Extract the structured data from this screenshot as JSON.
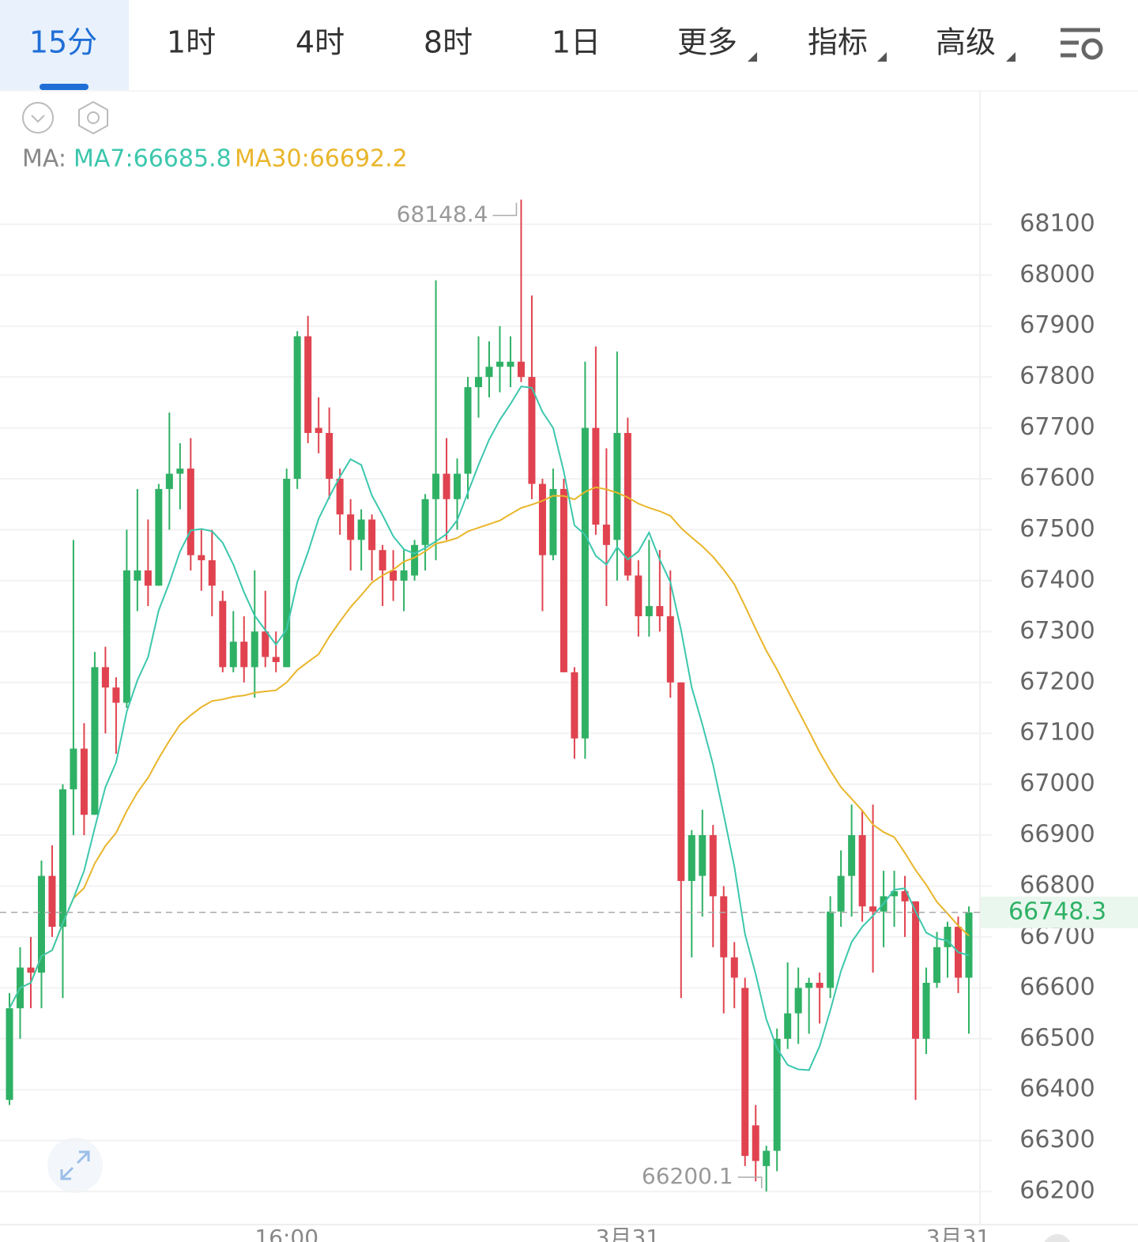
{
  "tabs": [
    "15分",
    "1时",
    "4时",
    "8时",
    "1日",
    "更多",
    "指标",
    "高级"
  ],
  "indicator": {
    "prefix": "MA:",
    "ma7": "MA7:66685.8",
    "ma30": "MA30:66692.2"
  },
  "chart_data": {
    "type": "candlestick",
    "categories": [
      null,
      null,
      null,
      null,
      null,
      null,
      null,
      null,
      null,
      null,
      null,
      null,
      null,
      null,
      null,
      null,
      null,
      null,
      null,
      null,
      null,
      null,
      null,
      null,
      null,
      null,
      "16:00",
      null,
      null,
      null,
      null,
      null,
      null,
      null,
      null,
      null,
      null,
      null,
      null,
      null,
      null,
      null,
      null,
      null,
      null,
      null,
      null,
      null,
      null,
      null,
      null,
      null,
      null,
      null,
      null,
      null,
      null,
      null,
      "3月31",
      null,
      null,
      null,
      null,
      null,
      null,
      null,
      null,
      null,
      null,
      null,
      null,
      null,
      null,
      null,
      null,
      null,
      null,
      null,
      null,
      null,
      null,
      null,
      null,
      null,
      null,
      null,
      null,
      null,
      null,
      "3月31",
      null
    ],
    "open": [
      66380,
      66560,
      66640,
      66630,
      66820,
      66720,
      66990,
      67070,
      66940,
      67230,
      67190,
      67160,
      67400,
      67420,
      67390,
      67580,
      67610,
      67620,
      67450,
      67440,
      67360,
      67230,
      67280,
      67230,
      67300,
      67250,
      67230,
      67600,
      67880,
      67700,
      67690,
      67600,
      67530,
      67480,
      67520,
      67460,
      67420,
      67400,
      67410,
      67470,
      67560,
      67610,
      67560,
      67610,
      67780,
      67800,
      67820,
      67820,
      67830,
      67800,
      67590,
      67450,
      67580,
      67220,
      67090,
      67700,
      67510,
      67480,
      67690,
      67410,
      67330,
      67350,
      67330,
      67200,
      66810,
      66820,
      66900,
      66780,
      66660,
      66600,
      66330,
      66250,
      66280,
      66500,
      66550,
      66600,
      66610,
      66600,
      66750,
      66820,
      66900,
      66760,
      66750,
      66780,
      66790,
      66770,
      66500,
      66610,
      66680,
      66720,
      66620
    ],
    "high": [
      66590,
      66680,
      66700,
      66850,
      66880,
      67000,
      67480,
      67120,
      67260,
      67270,
      67210,
      67500,
      67580,
      67520,
      67590,
      67730,
      67670,
      67680,
      67500,
      67500,
      67380,
      67340,
      67330,
      67420,
      67380,
      67300,
      67620,
      67890,
      67920,
      67760,
      67740,
      67620,
      67560,
      67540,
      67530,
      67470,
      67460,
      67460,
      67480,
      67570,
      67990,
      67680,
      67640,
      67800,
      67880,
      67870,
      67900,
      67880,
      68148.4,
      67960,
      67600,
      67620,
      67600,
      67230,
      67830,
      67860,
      67660,
      67850,
      67720,
      67440,
      67480,
      67460,
      67420,
      67200,
      66910,
      66950,
      66920,
      66800,
      66690,
      66620,
      66370,
      66290,
      66520,
      66650,
      66640,
      66620,
      66630,
      66780,
      66870,
      66960,
      66950,
      66960,
      66830,
      66830,
      66820,
      66770,
      66640,
      66710,
      66730,
      66740,
      66760
    ],
    "low": [
      66370,
      66500,
      66560,
      66560,
      66700,
      66580,
      66900,
      66900,
      66940,
      67100,
      67060,
      67150,
      67340,
      67350,
      67390,
      67500,
      67540,
      67420,
      67380,
      67330,
      67220,
      67220,
      67200,
      67170,
      67230,
      67220,
      67230,
      67580,
      67670,
      67650,
      67560,
      67490,
      67420,
      67420,
      67400,
      67350,
      67360,
      67340,
      67400,
      67420,
      67440,
      67480,
      67500,
      67560,
      67720,
      67760,
      67770,
      67780,
      67790,
      67560,
      67340,
      67440,
      67220,
      67050,
      67050,
      67490,
      67350,
      67400,
      67400,
      67290,
      67290,
      67300,
      67170,
      66580,
      66660,
      66740,
      66680,
      66550,
      66560,
      66250,
      66220,
      66200.1,
      66240,
      66480,
      66490,
      66510,
      66530,
      66580,
      66720,
      66740,
      66730,
      66630,
      66680,
      66720,
      66700,
      66380,
      66470,
      66600,
      66620,
      66590,
      66510
    ],
    "close": [
      66560,
      66640,
      66630,
      66820,
      66720,
      66990,
      67070,
      66940,
      67230,
      67190,
      67160,
      67420,
      67420,
      67390,
      67580,
      67610,
      67620,
      67450,
      67440,
      67390,
      67230,
      67280,
      67230,
      67300,
      67250,
      67240,
      67600,
      67880,
      67690,
      67690,
      67600,
      67530,
      67480,
      67520,
      67460,
      67420,
      67400,
      67420,
      67470,
      67560,
      67610,
      67560,
      67610,
      67780,
      67800,
      67820,
      67830,
      67830,
      67800,
      67590,
      67450,
      67580,
      67220,
      67090,
      67700,
      67510,
      67470,
      67690,
      67410,
      67330,
      67350,
      67330,
      67200,
      66810,
      66900,
      66900,
      66780,
      66660,
      66620,
      66270,
      66260,
      66280,
      66500,
      66550,
      66600,
      66610,
      66600,
      66750,
      66820,
      66900,
      66760,
      66750,
      66780,
      66790,
      66770,
      66500,
      66610,
      66680,
      66720,
      66620,
      66748.3
    ],
    "up_color": "#2fb165",
    "down_color": "#e0434f",
    "ma7_color": "#3cc7ad",
    "ma30_color": "#e9b52a",
    "ylim": [
      66135,
      68362
    ],
    "yticks": [
      66200,
      66300,
      66400,
      66500,
      66600,
      66700,
      66800,
      66900,
      67000,
      67100,
      67200,
      67300,
      67400,
      67500,
      67600,
      67700,
      67800,
      67900,
      68000,
      68100
    ],
    "grid": true
  }
}
